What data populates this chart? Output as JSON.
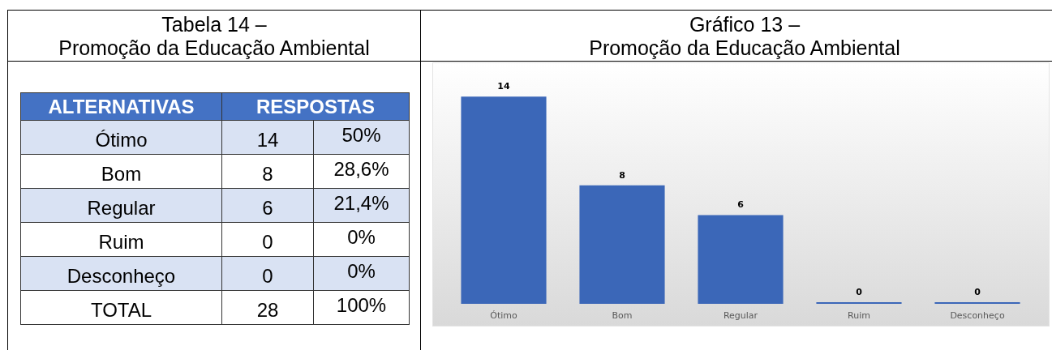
{
  "chart_data": [
    {
      "type": "other",
      "title": "Tabela 14 –",
      "subtitle": "Promoção da Educação Ambiental",
      "annotations": [
        "ALTERNATIVAS",
        "RESPOSTAS",
        "Ótimo",
        "14",
        "50%",
        "Bom",
        "8",
        "28,6%",
        "Regular",
        "6",
        "21,4%",
        "Ruim",
        "0",
        "0%",
        "Desconheço",
        "0",
        "0%",
        "TOTAL",
        "28",
        "100%"
      ]
    },
    {
      "type": "bar",
      "title": "Gráfico 13 –",
      "subtitle": "Promoção da Educação Ambiental",
      "categories": [
        "Ótimo",
        "Bom",
        "Regular",
        "Ruim",
        "Desconheço"
      ],
      "values": [
        14,
        8,
        6,
        0,
        0
      ],
      "color": "#3b67b8",
      "data_labels": true
    }
  ]
}
